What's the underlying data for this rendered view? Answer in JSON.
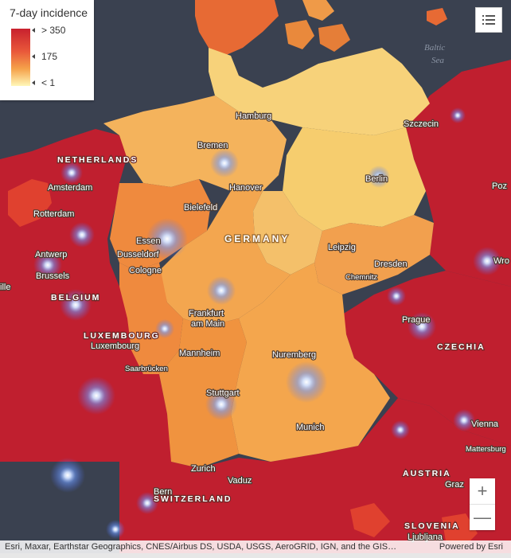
{
  "legend": {
    "title": "7-day incidence",
    "high_label": "> 350",
    "mid_label": "175",
    "low_label": "< 1",
    "ramp_colors": [
      "#c8202e",
      "#e9593a",
      "#f5a24a",
      "#fff7b8"
    ]
  },
  "colors": {
    "water": "#3a4150",
    "very_high": "#c01f2f",
    "high": "#e0412f",
    "medium_high": "#ef7d3a",
    "medium": "#f4a64d",
    "low": "#f6cd6e",
    "lowest": "#f9dd86",
    "hotspot": "#8fb8ff"
  },
  "map_labels": {
    "sea": [
      "Baltic",
      "Sea"
    ],
    "countries": {
      "germany": "GERMANY",
      "netherlands": "NETHERLANDS",
      "belgium": "BELGIUM",
      "luxembourg": "LUXEMBOURG",
      "czechia": "CZECHIA",
      "austria": "AUSTRIA",
      "switzerland": "SWITZERLAND",
      "slovenia": "SLOVENIA"
    },
    "cities": {
      "hamburg": "Hamburg",
      "szczecin": "Szczecin",
      "bremen": "Bremen",
      "hanover": "Hanover",
      "berlin": "Berlin",
      "amsterdam": "Amsterdam",
      "rotterdam": "Rotterdam",
      "bielefeld": "Bielefeld",
      "essen": "Essen",
      "dusseldorf": "Dusseldorf",
      "antwerp": "Antwerp",
      "brussels": "Brussels",
      "cologne": "Cologne",
      "leipzig": "Leipzig",
      "dresden": "Dresden",
      "chemnitz": "Chemnitz",
      "prague": "Prague",
      "frankfurt_1": "Frankfurt",
      "frankfurt_2": "am Main",
      "luxembourg": "Luxembourg",
      "mannheim": "Mannheim",
      "nuremberg": "Nuremberg",
      "saarbrucken": "Saarbrücken",
      "stuttgart": "Stuttgart",
      "munich": "Munich",
      "vienna": "Vienna",
      "mattersburg": "Mattersburg",
      "zurich": "Zurich",
      "vaduz": "Vaduz",
      "bern": "Bern",
      "graz": "Graz",
      "ljubljana": "Ljubljana",
      "lille": "ille",
      "poz": "Poz",
      "wro": "Wro"
    }
  },
  "controls": {
    "zoom_in": "+",
    "zoom_out": "—",
    "list_icon": "legend-list-icon"
  },
  "attribution": {
    "text": "Esri, Maxar, Earthstar Geographics, CNES/Airbus DS, USDA, USGS, AeroGRID, IGN, and the GIS…",
    "powered_by": "Powered by Esri"
  }
}
